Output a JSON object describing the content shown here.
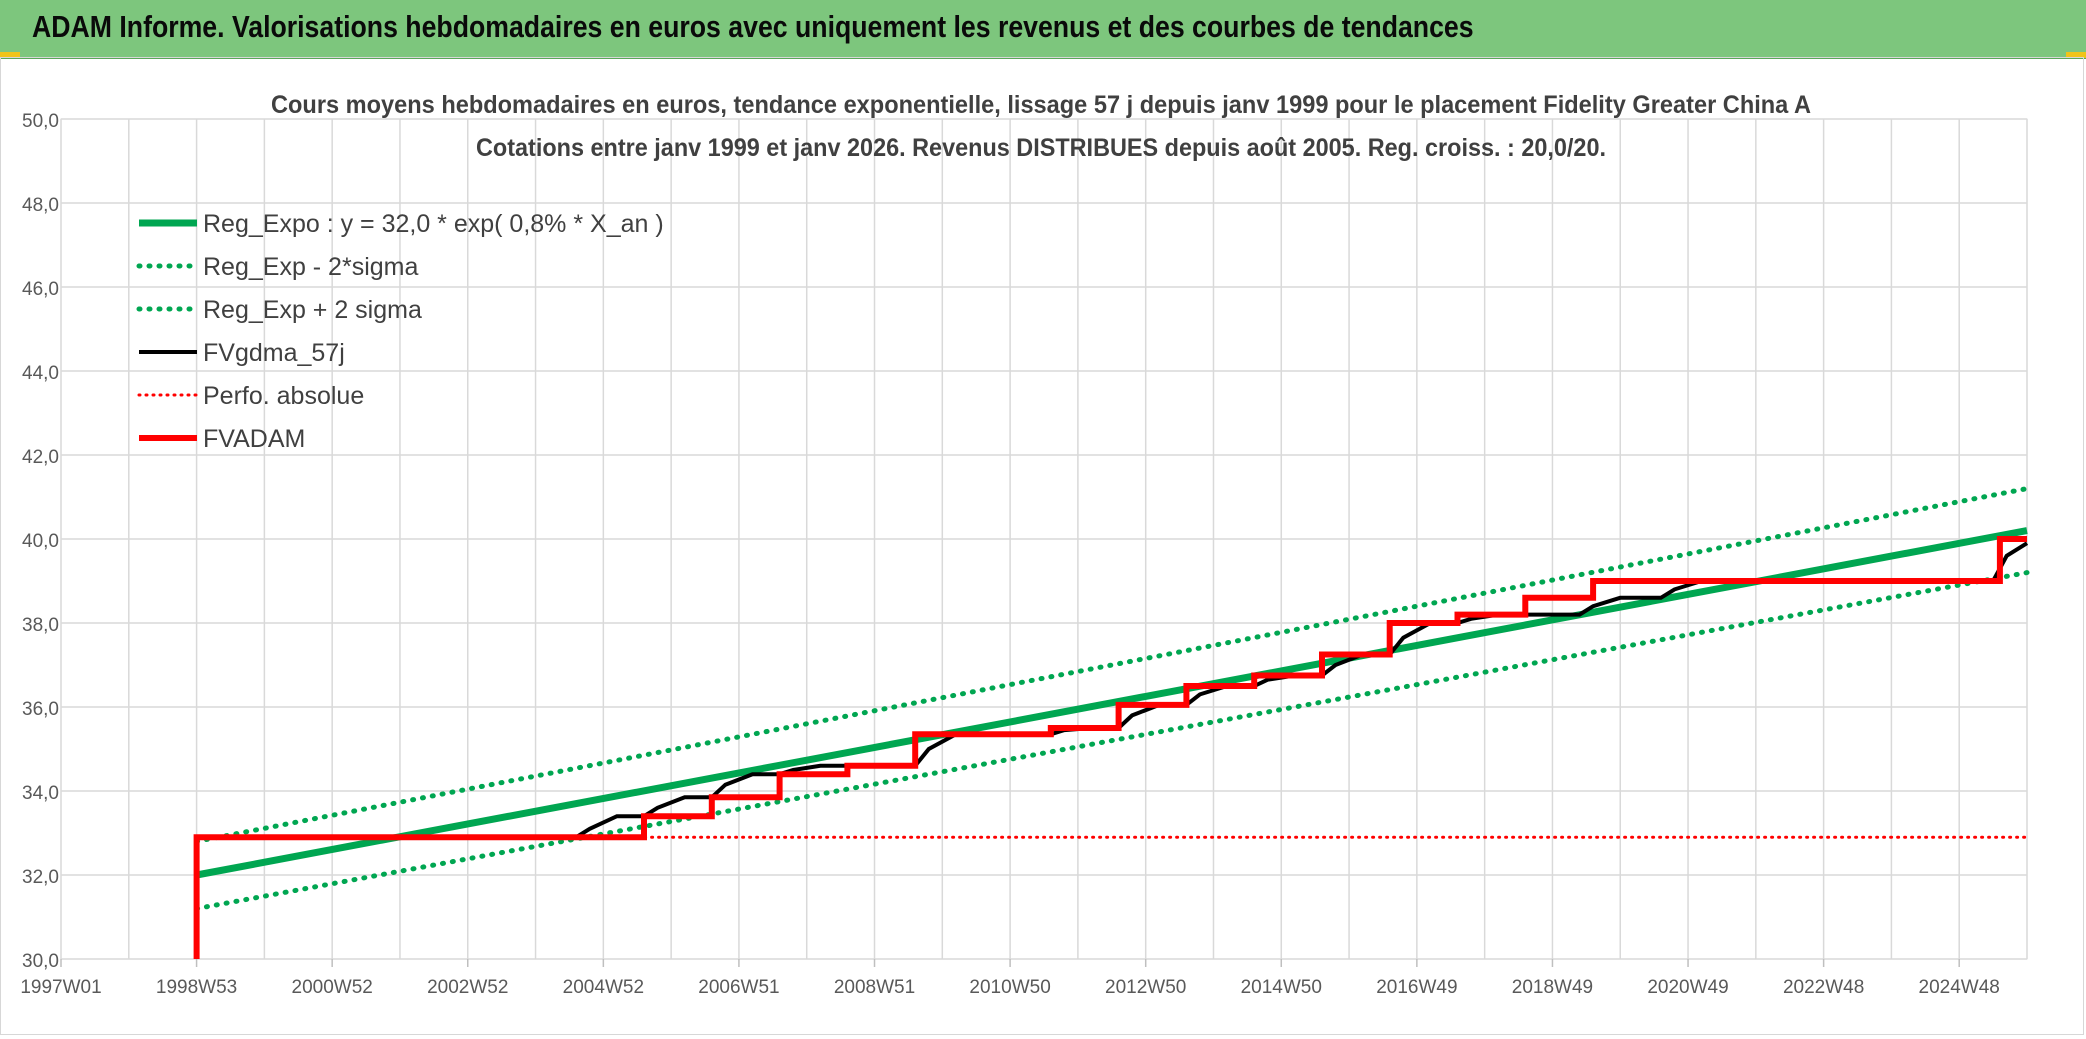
{
  "header": {
    "title": "ADAM Informe. Valorisations hebdomadaires en euros avec uniquement les revenus et des courbes de tendances"
  },
  "colors": {
    "header_bg": "#7dc67d",
    "green": "#00a651",
    "black": "#000000",
    "red": "#ff0000",
    "grid": "#d9d9d9"
  },
  "chart_data": {
    "type": "line",
    "title": "Cours moyens hebdomadaires en euros, tendance exponentielle, lissage 57 j depuis janv 1999 pour le placement Fidelity Greater China A",
    "subtitle": "Cotations entre janv 1999 et janv 2026. Revenus DISTRIBUES depuis août 2005. Reg. croiss. : 20,0/20.",
    "xlabel": "",
    "ylabel": "",
    "ylim": [
      30,
      50
    ],
    "xlim": [
      1997.0,
      2026.0
    ],
    "grid": true,
    "legend_position": "top-left",
    "y_ticks": [
      "30,0",
      "32,0",
      "34,0",
      "36,0",
      "38,0",
      "40,0",
      "42,0",
      "44,0",
      "46,0",
      "48,0",
      "50,0"
    ],
    "x_ticks": [
      {
        "label": "1997W01",
        "x": 1997.0
      },
      {
        "label": "1998W53",
        "x": 1999.0
      },
      {
        "label": "2000W52",
        "x": 2001.0
      },
      {
        "label": "2002W52",
        "x": 2003.0
      },
      {
        "label": "2004W52",
        "x": 2005.0
      },
      {
        "label": "2006W51",
        "x": 2007.0
      },
      {
        "label": "2008W51",
        "x": 2009.0
      },
      {
        "label": "2010W50",
        "x": 2011.0
      },
      {
        "label": "2012W50",
        "x": 2013.0
      },
      {
        "label": "2014W50",
        "x": 2015.0
      },
      {
        "label": "2016W49",
        "x": 2017.0
      },
      {
        "label": "2018W49",
        "x": 2019.0
      },
      {
        "label": "2020W49",
        "x": 2021.0
      },
      {
        "label": "2022W48",
        "x": 2023.0
      },
      {
        "label": "2024W48",
        "x": 2025.0
      }
    ],
    "series": [
      {
        "name": "Reg_Expo : y = 32,0 * exp( 0,8% *  X_an )",
        "style": "solid",
        "color": "#00a651",
        "x": [
          1999.0,
          2026.0
        ],
        "y": [
          32.0,
          40.2
        ]
      },
      {
        "name": "Reg_Exp - 2*sigma",
        "style": "dotted",
        "color": "#00a651",
        "x": [
          1999.0,
          2026.0
        ],
        "y": [
          31.2,
          39.2
        ]
      },
      {
        "name": "Reg_Exp + 2 sigma",
        "style": "dotted",
        "color": "#00a651",
        "x": [
          1999.0,
          2026.0
        ],
        "y": [
          32.8,
          41.2
        ]
      },
      {
        "name": "FVgdma_57j",
        "style": "solid",
        "color": "#000000",
        "x": [
          1999.0,
          2004.6,
          2004.8,
          2005.2,
          2005.6,
          2005.8,
          2006.2,
          2006.6,
          2006.8,
          2007.2,
          2007.6,
          2007.8,
          2008.2,
          2009.6,
          2009.8,
          2010.2,
          2011.6,
          2011.8,
          2012.2,
          2012.6,
          2012.8,
          2013.2,
          2013.6,
          2013.8,
          2014.2,
          2014.6,
          2014.8,
          2015.2,
          2015.6,
          2015.8,
          2016.2,
          2016.6,
          2016.8,
          2017.2,
          2017.6,
          2017.8,
          2018.2,
          2019.4,
          2019.6,
          2020.0,
          2020.6,
          2020.8,
          2021.2,
          2025.5,
          2025.7,
          2026.0
        ],
        "y": [
          32.9,
          32.9,
          33.1,
          33.4,
          33.4,
          33.6,
          33.85,
          33.85,
          34.15,
          34.4,
          34.4,
          34.5,
          34.6,
          34.6,
          35.0,
          35.35,
          35.35,
          35.45,
          35.5,
          35.5,
          35.8,
          36.05,
          36.05,
          36.3,
          36.5,
          36.5,
          36.65,
          36.75,
          36.75,
          37.0,
          37.25,
          37.25,
          37.65,
          38.0,
          38.0,
          38.1,
          38.2,
          38.2,
          38.4,
          38.6,
          38.6,
          38.8,
          39.0,
          39.0,
          39.6,
          39.9
        ]
      },
      {
        "name": "Perfo. absolue",
        "style": "dotted",
        "color": "#ff0000",
        "x": [
          1999.0,
          2026.0
        ],
        "y": [
          32.9,
          32.9
        ]
      },
      {
        "name": "FVADAM",
        "style": "solid",
        "color": "#ff0000",
        "x": [
          1999.0,
          1999.0,
          2005.6,
          2005.6,
          2006.6,
          2006.6,
          2007.6,
          2007.6,
          2008.6,
          2008.6,
          2009.6,
          2009.6,
          2011.6,
          2011.6,
          2012.6,
          2012.6,
          2013.6,
          2013.6,
          2014.6,
          2014.6,
          2015.6,
          2015.6,
          2016.6,
          2016.6,
          2017.6,
          2017.6,
          2018.6,
          2018.6,
          2019.6,
          2019.6,
          2020.6,
          2020.6,
          2025.6,
          2025.6,
          2026.0
        ],
        "y": [
          30.0,
          32.9,
          32.9,
          33.4,
          33.4,
          33.85,
          33.85,
          34.4,
          34.4,
          34.6,
          34.6,
          35.35,
          35.35,
          35.5,
          35.5,
          36.05,
          36.05,
          36.5,
          36.5,
          36.75,
          36.75,
          37.25,
          37.25,
          38.0,
          38.0,
          38.2,
          38.2,
          38.6,
          38.6,
          39.0,
          39.0,
          39.0,
          39.0,
          40.0,
          40.0
        ]
      }
    ]
  }
}
